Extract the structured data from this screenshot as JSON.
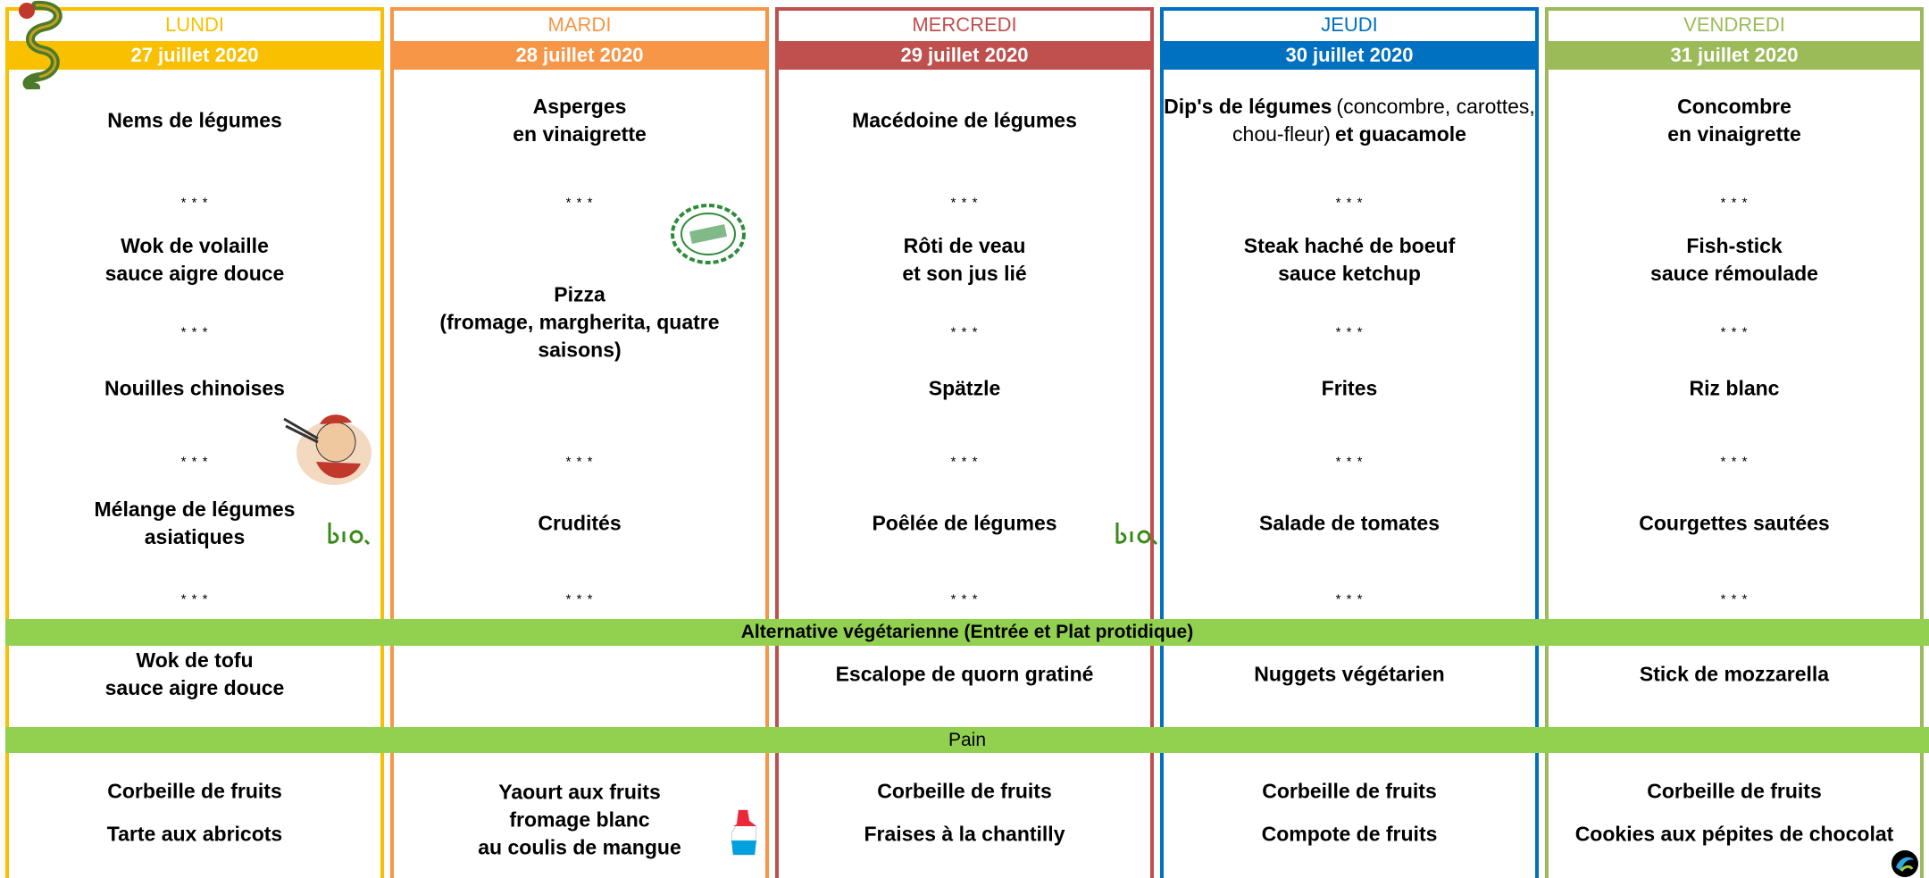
{
  "separator": "* * *",
  "vegetarian_banner": "Alternative végétarienne (Entrée et Plat protidique)",
  "bread_banner": "Pain",
  "days": [
    {
      "name": "LUNDI",
      "date": "27 juillet 2020",
      "color": "#f9c000",
      "starter": [
        "Nems de légumes"
      ],
      "main": [
        "Wok de volaille",
        "sauce aigre douce"
      ],
      "side": [
        "Nouilles chinoises"
      ],
      "vegetable": [
        "Mélange de légumes",
        "asiatiques"
      ],
      "vegetarian": [
        "Wok de tofu",
        "sauce aigre douce"
      ],
      "desserts": [
        [
          "Corbeille de fruits"
        ],
        [
          "Tarte aux abricots"
        ]
      ]
    },
    {
      "name": "MARDI",
      "date": "28 juillet 2020",
      "color": "#f79646",
      "starter": [
        "Asperges",
        "en vinaigrette"
      ],
      "main": [
        "Pizza",
        "(fromage, margherita, quatre",
        "saisons)"
      ],
      "vegetable": [
        "Crudités"
      ],
      "desserts": [
        [
          "Yaourt aux fruits",
          "fromage blanc",
          "au coulis de mangue"
        ]
      ]
    },
    {
      "name": "MERCREDI",
      "date": "29 juillet 2020",
      "color": "#c0504d",
      "starter": [
        "Macédoine de légumes"
      ],
      "main": [
        "Rôti de veau",
        "et son jus lié"
      ],
      "side": [
        "Spätzle"
      ],
      "vegetable": [
        "Poêlée de légumes"
      ],
      "vegetarian": [
        "Escalope de quorn gratiné"
      ],
      "desserts": [
        [
          "Corbeille de fruits"
        ],
        [
          "Fraises à la chantilly"
        ]
      ]
    },
    {
      "name": "JEUDI",
      "date": "30 juillet 2020",
      "color": "#0070c0",
      "starter": [
        [
          {
            "text": "Dip's de légumes",
            "bold": true
          },
          {
            "text": "(concombre, carottes, chou-fleur)",
            "bold": false
          },
          {
            "text": "et guacamole",
            "bold": true
          }
        ]
      ],
      "main": [
        "Steak haché de boeuf",
        "sauce ketchup"
      ],
      "side": [
        "Frites"
      ],
      "vegetable": [
        "Salade de tomates"
      ],
      "vegetarian": [
        "Nuggets végétarien"
      ],
      "desserts": [
        [
          "Corbeille de fruits"
        ],
        [
          "Compote de fruits"
        ]
      ]
    },
    {
      "name": "VENDREDI",
      "date": "31 juillet 2020",
      "color": "#9bbb59",
      "starter": [
        "Concombre",
        "en vinaigrette"
      ],
      "main": [
        "Fish-stick",
        "sauce rémoulade"
      ],
      "side": [
        "Riz blanc"
      ],
      "vegetable": [
        "Courgettes sautées"
      ],
      "vegetarian": [
        "Stick de mozzarella"
      ],
      "desserts": [
        [
          "Corbeille de fruits"
        ],
        [
          "Cookies aux pépites de chocolat"
        ]
      ]
    }
  ]
}
